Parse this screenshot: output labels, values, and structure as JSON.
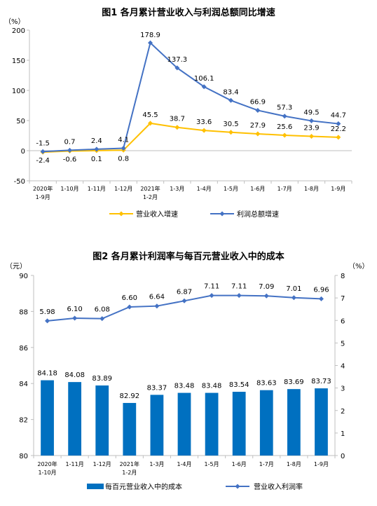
{
  "chart_data": [
    {
      "type": "line",
      "title": "图1  各月累计营业收入与利润总额同比增速",
      "y_unit": "（%）",
      "ylim": [
        -50,
        200
      ],
      "y_ticks": [
        "-50",
        "0",
        "50",
        "100",
        "150",
        "200"
      ],
      "categories": [
        [
          "2020年",
          "1-9月"
        ],
        [
          "1-10月"
        ],
        [
          "1-11月"
        ],
        [
          "1-12月"
        ],
        [
          "2021年",
          "1-2月"
        ],
        [
          "1-3月"
        ],
        [
          "1-4月"
        ],
        [
          "1-5月"
        ],
        [
          "1-6月"
        ],
        [
          "1-7月"
        ],
        [
          "1-8月"
        ],
        [
          "1-9月"
        ]
      ],
      "series": [
        {
          "name": "营业收入增速",
          "color": "#FFC000",
          "values": [
            -2.4,
            -0.6,
            0.1,
            0.8,
            45.5,
            38.7,
            33.6,
            30.5,
            27.9,
            25.6,
            23.9,
            22.2
          ],
          "labels": [
            "-2.4",
            "-0.6",
            "0.1",
            "0.8",
            "45.5",
            "38.7",
            "33.6",
            "30.5",
            "27.9",
            "25.6",
            "23.9",
            "22.2"
          ]
        },
        {
          "name": "利润总额增速",
          "color": "#4472C4",
          "values": [
            -1.5,
            0.7,
            2.4,
            4.1,
            178.9,
            137.3,
            106.1,
            83.4,
            66.9,
            57.3,
            49.5,
            44.7
          ],
          "labels": [
            "-1.5",
            "0.7",
            "2.4",
            "4.1",
            "178.9",
            "137.3",
            "106.1",
            "83.4",
            "66.9",
            "57.3",
            "49.5",
            "44.7"
          ]
        }
      ]
    },
    {
      "type": "bar+line",
      "title": "图2  各月累计利润率与每百元营业收入中的成本",
      "y_left_unit": "（元）",
      "y_right_unit": "（%）",
      "ylim_left": [
        80,
        90
      ],
      "ylim_right": [
        0,
        8
      ],
      "y_left_ticks": [
        "80",
        "82",
        "84",
        "86",
        "88",
        "90"
      ],
      "y_right_ticks": [
        "0",
        "1",
        "2",
        "3",
        "4",
        "5",
        "6",
        "7",
        "8"
      ],
      "categories": [
        [
          "2020年",
          "1-10月"
        ],
        [
          "1-11月"
        ],
        [
          "1-12月"
        ],
        [
          "2021年",
          "1-2月"
        ],
        [
          "1-3月"
        ],
        [
          "1-4月"
        ],
        [
          "1-5月"
        ],
        [
          "1-6月"
        ],
        [
          "1-7月"
        ],
        [
          "1-8月"
        ],
        [
          "1-9月"
        ]
      ],
      "bar_series": {
        "name": "每百元营业收入中的成本",
        "color": "#0070C0",
        "values": [
          84.18,
          84.08,
          83.89,
          82.92,
          83.37,
          83.48,
          83.48,
          83.54,
          83.63,
          83.69,
          83.73
        ],
        "labels": [
          "84.18",
          "84.08",
          "83.89",
          "82.92",
          "83.37",
          "83.48",
          "83.48",
          "83.54",
          "83.63",
          "83.69",
          "83.73"
        ]
      },
      "line_series": {
        "name": "营业收入利润率",
        "color": "#4472C4",
        "values": [
          5.98,
          6.1,
          6.08,
          6.6,
          6.64,
          6.87,
          7.11,
          7.11,
          7.09,
          7.01,
          6.96
        ],
        "labels": [
          "5.98",
          "6.10",
          "6.08",
          "6.60",
          "6.64",
          "6.87",
          "7.11",
          "7.11",
          "7.09",
          "7.01",
          "6.96"
        ]
      }
    }
  ]
}
